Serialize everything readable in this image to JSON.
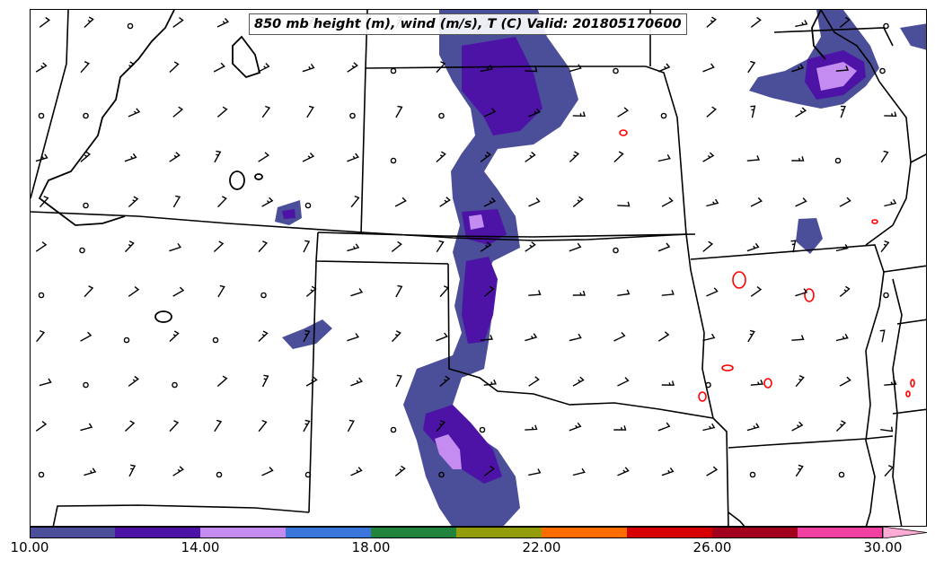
{
  "title": "850 mb height (m), wind (m/s), T (C) Valid: 201805170600",
  "colorbar": {
    "tick_labels": [
      "10.00",
      "14.00",
      "18.00",
      "22.00",
      "26.00",
      "30.00"
    ],
    "colors": [
      "#4b4e99",
      "#4c13a6",
      "#c48cf0",
      "#3a75dc",
      "#21843c",
      "#939c0a",
      "#ff6d00",
      "#d60000",
      "#a3001e",
      "#f240a2",
      "#ffabd6"
    ]
  },
  "map_colors": {
    "wind_contour_outer": "#4b4e99",
    "wind_contour_mid": "#4c13a6",
    "wind_contour_inner": "#c48cf0",
    "temperature_contour": "#ff0000",
    "height_contour": "#000000"
  }
}
